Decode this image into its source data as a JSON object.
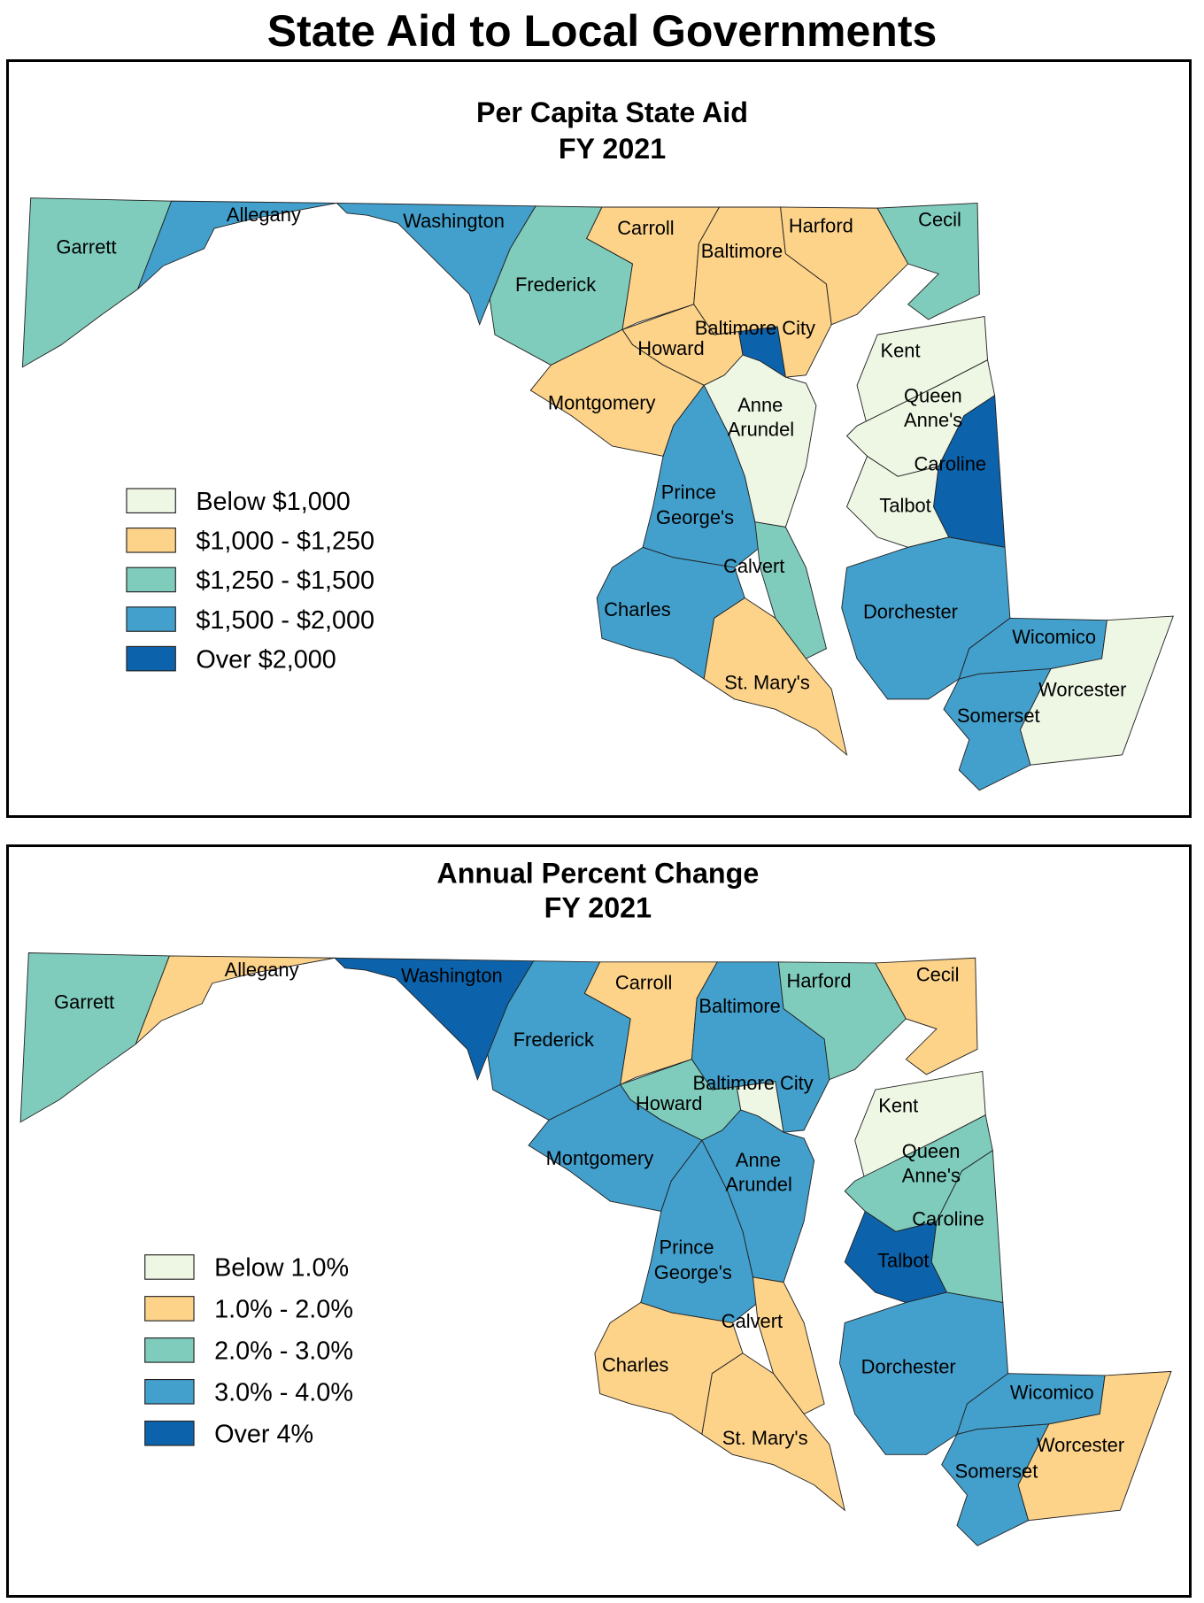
{
  "title": "State Aid to Local Governments",
  "colors": {
    "c1": "#eef6e4",
    "c2": "#fdd38a",
    "c3": "#7fccbd",
    "c4": "#43a0cc",
    "c5": "#0c63ab"
  },
  "panels": [
    {
      "title": "Per Capita State Aid",
      "subtitle": "FY 2021",
      "legend": [
        {
          "label": "Below $1,000",
          "cls": "c1"
        },
        {
          "label": "$1,000 - $1,250",
          "cls": "c2"
        },
        {
          "label": "$1,250 - $1,500",
          "cls": "c3"
        },
        {
          "label": "$1,500 - $2,000",
          "cls": "c4"
        },
        {
          "label": "Over $2,000",
          "cls": "c5"
        }
      ],
      "counties": {
        "Garrett": "c3",
        "Allegany": "c4",
        "Washington": "c4",
        "Frederick": "c3",
        "Carroll": "c2",
        "Baltimore": "c2",
        "Harford": "c2",
        "Cecil": "c3",
        "Baltimore City": "c5",
        "Howard": "c2",
        "Montgomery": "c2",
        "Anne Arundel": "c1",
        "Prince George's": "c4",
        "Calvert": "c3",
        "Charles": "c4",
        "St. Mary's": "c2",
        "Kent": "c1",
        "Queen Anne's": "c1",
        "Caroline": "c5",
        "Talbot": "c1",
        "Dorchester": "c4",
        "Wicomico": "c4",
        "Worcester": "c1",
        "Somerset": "c4"
      }
    },
    {
      "title": "Annual Percent Change",
      "subtitle": "FY 2021",
      "legend": [
        {
          "label": "Below 1.0%",
          "cls": "c1"
        },
        {
          "label": "1.0% - 2.0%",
          "cls": "c2"
        },
        {
          "label": "2.0% - 3.0%",
          "cls": "c3"
        },
        {
          "label": "3.0% - 4.0%",
          "cls": "c4"
        },
        {
          "label": "Over 4%",
          "cls": "c5"
        }
      ],
      "counties": {
        "Garrett": "c3",
        "Allegany": "c2",
        "Washington": "c5",
        "Frederick": "c4",
        "Carroll": "c2",
        "Baltimore": "c4",
        "Harford": "c3",
        "Cecil": "c2",
        "Baltimore City": "c1",
        "Howard": "c3",
        "Montgomery": "c4",
        "Anne Arundel": "c4",
        "Prince George's": "c4",
        "Calvert": "c2",
        "Charles": "c2",
        "St. Mary's": "c2",
        "Kent": "c1",
        "Queen Anne's": "c3",
        "Caroline": "c3",
        "Talbot": "c5",
        "Dorchester": "c4",
        "Wicomico": "c4",
        "Worcester": "c2",
        "Somerset": "c4"
      }
    }
  ]
}
